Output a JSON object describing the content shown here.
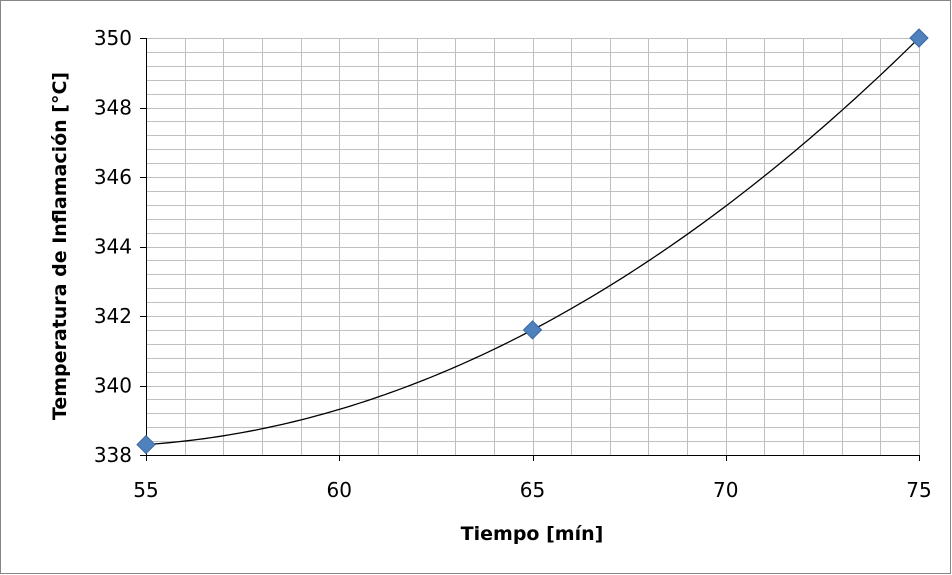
{
  "chart_data": {
    "type": "scatter",
    "title": "",
    "xlabel": "Tiempo [mín]",
    "ylabel": "Temperatura de Inflamación [°C]",
    "xlim": [
      55,
      75
    ],
    "ylim": [
      338,
      350
    ],
    "x_ticks": [
      55,
      60,
      65,
      70,
      75
    ],
    "y_ticks": [
      338,
      340,
      342,
      344,
      346,
      348,
      350
    ],
    "x_minor_step": 1,
    "y_minor_step": 0.4,
    "grid": true,
    "legend": "none",
    "series": [
      {
        "points": [
          {
            "x": 55,
            "y": 338.3
          },
          {
            "x": 65,
            "y": 341.6
          },
          {
            "x": 75,
            "y": 350.0
          }
        ],
        "marker": "diamond",
        "color": "#4f81bd",
        "trendline": "polynomial-2",
        "trendline_color": "#000000"
      }
    ],
    "colors": {
      "grid": "#bfbfbf",
      "frame": "#868686",
      "axis": "#000000"
    }
  }
}
